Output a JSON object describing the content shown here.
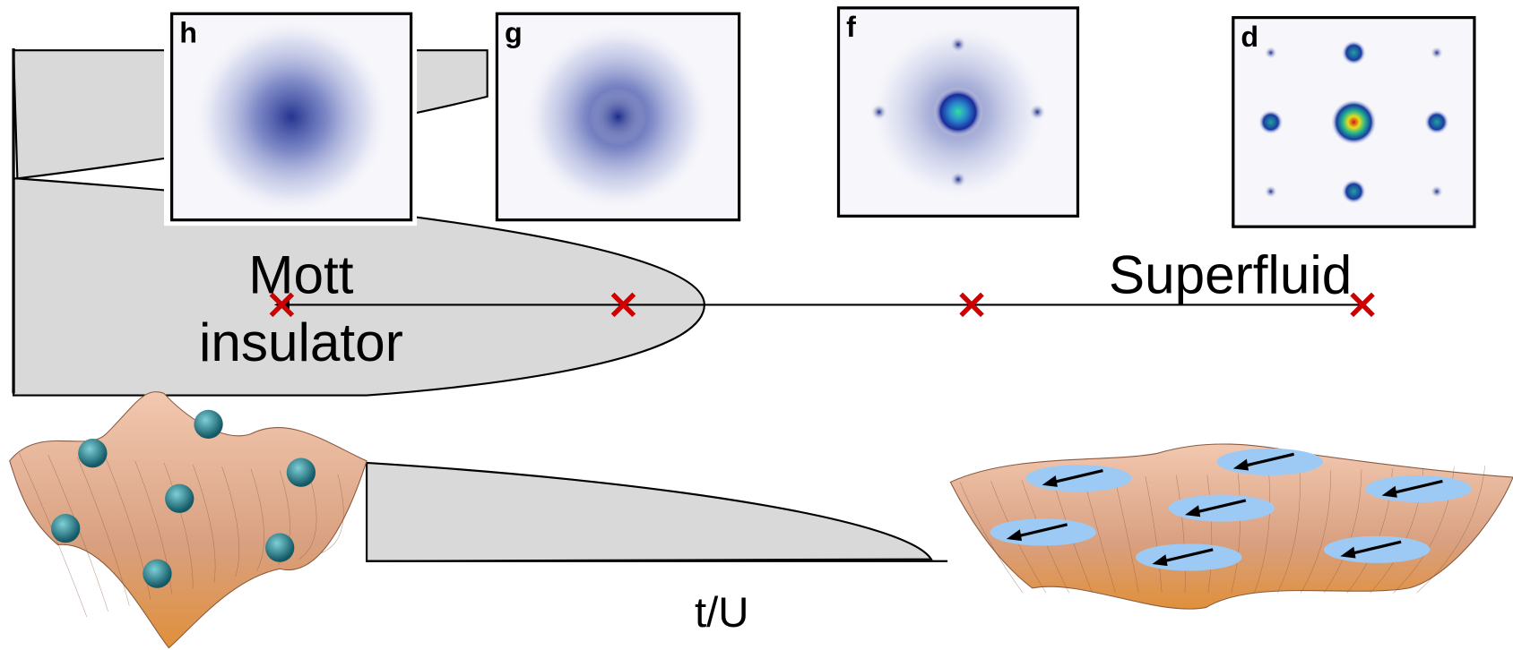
{
  "panels": [
    {
      "label": "h"
    },
    {
      "label": "g"
    },
    {
      "label": "f"
    },
    {
      "label": "d"
    }
  ],
  "phases": {
    "mott": [
      "Mott",
      "insulator"
    ],
    "superfluid": "Superfluid"
  },
  "axis": {
    "x_label": "t/U"
  }
}
